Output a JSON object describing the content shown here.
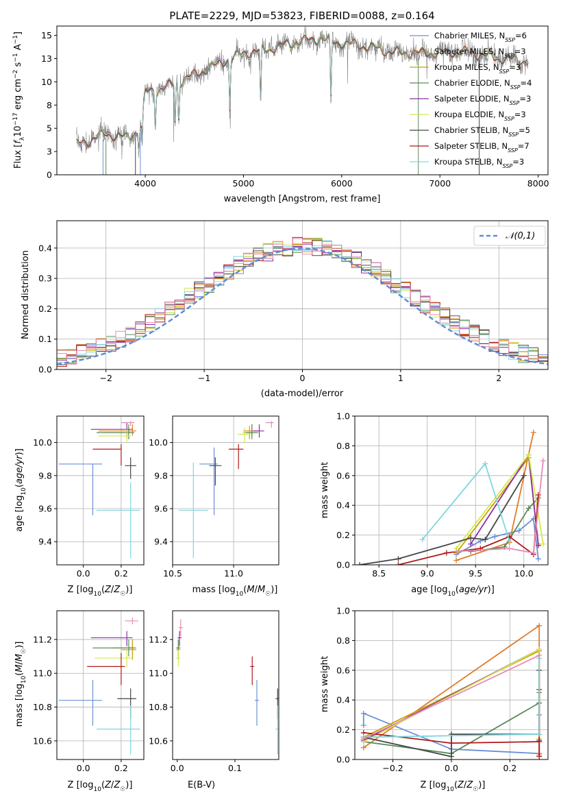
{
  "figure": {
    "background": "#ffffff"
  },
  "chart_data": [
    {
      "id": "spectrum",
      "type": "line",
      "title": "PLATE=2229, MJD=53823, FIBERID=0088, z=0.164",
      "xlabel": "wavelength [Angstrom, rest frame]",
      "ylabel": "Flux [f_λ10^-17 erg cm^-2 s^-1 A^-1]",
      "xlim": [
        3100,
        8100
      ],
      "ylim": [
        0,
        16
      ],
      "xticks": [
        4000,
        5000,
        6000,
        7000,
        8000
      ],
      "yticks": [
        0.0,
        2.5,
        5.0,
        7.5,
        10.0,
        12.5,
        15.0
      ],
      "grid": false,
      "legend_position": "right",
      "data_color": "#808080",
      "continuum": {
        "x": [
          3300,
          3400,
          3600,
          3800,
          3850,
          3950,
          4000,
          4200,
          4400,
          4600,
          4800,
          5000,
          5200,
          5400,
          5600,
          5800,
          6000,
          6200,
          6400,
          6600,
          6800,
          7000,
          7200,
          7400,
          7600,
          7800,
          7900
        ],
        "y": [
          3.2,
          3.5,
          4.5,
          4.0,
          4.0,
          5.0,
          8.8,
          9.5,
          10.2,
          11.2,
          12.3,
          13.0,
          13.4,
          14.0,
          14.3,
          14.7,
          14.2,
          13.8,
          13.5,
          13.1,
          13.0,
          13.2,
          13.2,
          12.9,
          12.6,
          12.3,
          12.1
        ]
      },
      "absorption_lines": [
        3934,
        3969,
        4102,
        4304,
        4341,
        4861,
        5175,
        5890
      ],
      "series": [
        {
          "name": "Chabrier MILES, N_SSP=6",
          "color": "#6a8fd6",
          "xmin": 3300,
          "xmax": 7900
        },
        {
          "name": "Salpeter MILES, N_SSP=3",
          "color": "#e07b2a",
          "xmin": 3300,
          "xmax": 7450
        },
        {
          "name": "Kroupa MILES, N_SSP=3",
          "color": "#c7a400",
          "xmin": 3300,
          "xmax": 7900
        },
        {
          "name": "Chabrier ELODIE, N_SSP=4",
          "color": "#5a8a5a",
          "xmin": 3300,
          "xmax": 7900
        },
        {
          "name": "Salpeter ELODIE, N_SSP=3",
          "color": "#8e2ca8",
          "xmin": 3300,
          "xmax": 7900
        },
        {
          "name": "Kroupa ELODIE, N_SSP=3",
          "color": "#d4e84a",
          "xmin": 3300,
          "xmax": 7900
        },
        {
          "name": "Chabrier STELIB, N_SSP=5",
          "color": "#444444",
          "xmin": 3300,
          "xmax": 7900
        },
        {
          "name": "Salpeter STELIB, N_SSP=7",
          "color": "#b01818",
          "xmin": 3300,
          "xmax": 7900
        },
        {
          "name": "Kroupa STELIB, N_SSP=3",
          "color": "#7fd6df",
          "xmin": 3300,
          "xmax": 7900
        }
      ]
    },
    {
      "id": "residuals",
      "type": "histogram",
      "xlabel": "(data-model)/error",
      "ylabel": "Normed distribution",
      "xlim": [
        -2.5,
        2.5
      ],
      "ylim": [
        0,
        0.49
      ],
      "xticks": [
        -2,
        -1,
        0,
        1,
        2
      ],
      "yticks": [
        0.0,
        0.1,
        0.2,
        0.3,
        0.4
      ],
      "grid": true,
      "bin_width": 0.1,
      "reference": {
        "name": "𝒩(0,1)",
        "color": "#5b8dd6",
        "style": "dashed"
      },
      "hist_colors": [
        "#6a8fd6",
        "#e07b2a",
        "#c7a400",
        "#5a8a5a",
        "#8e2ca8",
        "#d4e84a",
        "#444444",
        "#b01818",
        "#7fd6df",
        "#e88ab4"
      ]
    },
    {
      "id": "age-vs-Z",
      "type": "errorbar",
      "xlabel": "Z [log10(Z/Z☉)]",
      "ylabel": "age  [log10(age/yr)]",
      "xlim": [
        -0.14,
        0.32
      ],
      "ylim": [
        9.26,
        10.16
      ],
      "xticks": [
        0.0,
        0.2
      ],
      "yticks": [
        9.4,
        9.6,
        9.8,
        10.0
      ],
      "grid": true,
      "points": [
        {
          "color": "#6a8fd6",
          "x": 0.05,
          "xerr": [
            0.18,
            0.05
          ],
          "y": 9.87,
          "yerr": [
            0.31,
            0.0
          ]
        },
        {
          "color": "#e07b2a",
          "x": 0.26,
          "xerr": [
            0.18,
            0.02
          ],
          "y": 10.07,
          "yerr": [
            0.03,
            0.04
          ]
        },
        {
          "color": "#c7a400",
          "x": 0.24,
          "xerr": [
            0.14,
            0.02
          ],
          "y": 10.06,
          "yerr": [
            0.04,
            0.04
          ]
        },
        {
          "color": "#5a8a5a",
          "x": 0.24,
          "xerr": [
            0.17,
            0.03
          ],
          "y": 10.06,
          "yerr": [
            0.04,
            0.05
          ]
        },
        {
          "color": "#8e2ca8",
          "x": 0.23,
          "xerr": [
            0.19,
            0.03
          ],
          "y": 10.08,
          "yerr": [
            0.05,
            0.04
          ]
        },
        {
          "color": "#d4e84a",
          "x": 0.23,
          "xerr": [
            0.15,
            0.02
          ],
          "y": 10.04,
          "yerr": [
            0.04,
            0.04
          ]
        },
        {
          "color": "#444444",
          "x": 0.25,
          "xerr": [
            0.03,
            0.03
          ],
          "y": 9.86,
          "yerr": [
            0.08,
            0.05
          ]
        },
        {
          "color": "#b01818",
          "x": 0.2,
          "xerr": [
            0.15,
            0.0
          ],
          "y": 9.96,
          "yerr": [
            0.1,
            0.03
          ]
        },
        {
          "color": "#7fd6df",
          "x": 0.25,
          "xerr": [
            0.18,
            0.05
          ],
          "y": 9.59,
          "yerr": [
            0.29,
            0.17
          ]
        },
        {
          "color": "#e88ab4",
          "x": 0.25,
          "xerr": [
            0.05,
            0.02
          ],
          "y": 10.12,
          "yerr": [
            0.02,
            0.01
          ]
        }
      ]
    },
    {
      "id": "age-vs-mass",
      "type": "errorbar",
      "xlabel": "mass [log10(M/M☉)]",
      "ylabel": "",
      "xlim": [
        10.5,
        11.37
      ],
      "ylim": [
        9.26,
        10.16
      ],
      "xticks": [
        10.5,
        11.0
      ],
      "yticks": [
        9.4,
        9.6,
        9.8,
        10.0
      ],
      "grid": true,
      "points": [
        {
          "color": "#6a8fd6",
          "x": 10.84,
          "xerr": [
            0.12,
            0.03
          ],
          "y": 9.87,
          "yerr": [
            0.31,
            0.1
          ]
        },
        {
          "color": "#e07b2a",
          "x": 11.15,
          "xerr": [
            0.07,
            0.05
          ],
          "y": 10.07,
          "yerr": [
            0.03,
            0.04
          ]
        },
        {
          "color": "#c7a400",
          "x": 11.13,
          "xerr": [
            0.05,
            0.05
          ],
          "y": 10.06,
          "yerr": [
            0.04,
            0.04
          ]
        },
        {
          "color": "#5a8a5a",
          "x": 11.15,
          "xerr": [
            0.05,
            0.05
          ],
          "y": 10.06,
          "yerr": [
            0.04,
            0.05
          ]
        },
        {
          "color": "#8e2ca8",
          "x": 11.21,
          "xerr": [
            0.05,
            0.04
          ],
          "y": 10.07,
          "yerr": [
            0.04,
            0.04
          ]
        },
        {
          "color": "#d4e84a",
          "x": 11.09,
          "xerr": [
            0.06,
            0.05
          ],
          "y": 10.05,
          "yerr": [
            0.05,
            0.04
          ]
        },
        {
          "color": "#444444",
          "x": 10.85,
          "xerr": [
            0.05,
            0.05
          ],
          "y": 9.86,
          "yerr": [
            0.12,
            0.05
          ]
        },
        {
          "color": "#b01818",
          "x": 11.04,
          "xerr": [
            0.08,
            0.04
          ],
          "y": 9.96,
          "yerr": [
            0.12,
            0.03
          ]
        },
        {
          "color": "#7fd6df",
          "x": 10.67,
          "xerr": [
            0.12,
            0.12
          ],
          "y": 9.59,
          "yerr": [
            0.29,
            0.29
          ]
        },
        {
          "color": "#e88ab4",
          "x": 11.31,
          "xerr": [
            0.05,
            0.02
          ],
          "y": 10.12,
          "yerr": [
            0.03,
            0.01
          ]
        }
      ]
    },
    {
      "id": "massweight-vs-age",
      "type": "line",
      "xlabel": "age  [log10(age/yr)]",
      "ylabel": "mass weight",
      "xlim": [
        8.25,
        10.25
      ],
      "ylim": [
        0,
        1
      ],
      "xticks": [
        8.5,
        9.0,
        9.5,
        10.0
      ],
      "yticks": [
        0.0,
        0.2,
        0.4,
        0.6,
        0.8,
        1.0
      ],
      "grid": true,
      "series": [
        {
          "color": "#6a8fd6",
          "x": [
            9.3,
            9.55,
            9.7,
            9.95,
            10.1,
            10.15
          ],
          "y": [
            0.07,
            0.16,
            0.19,
            0.23,
            0.31,
            0.04
          ]
        },
        {
          "color": "#e07b2a",
          "x": [
            9.3,
            9.85,
            10.1
          ],
          "y": [
            0.03,
            0.15,
            0.89
          ]
        },
        {
          "color": "#c7a400",
          "x": [
            9.3,
            10.05,
            10.15
          ],
          "y": [
            0.08,
            0.72,
            0.14
          ]
        },
        {
          "color": "#5a8a5a",
          "x": [
            9.45,
            9.8,
            10.05,
            10.15
          ],
          "y": [
            0.09,
            0.12,
            0.38,
            0.45
          ]
        },
        {
          "color": "#8e2ca8",
          "x": [
            9.45,
            10.05,
            10.15
          ],
          "y": [
            0.14,
            0.74,
            0.13
          ]
        },
        {
          "color": "#d4e84a",
          "x": [
            9.3,
            10.05,
            10.2
          ],
          "y": [
            0.11,
            0.74,
            0.14
          ]
        },
        {
          "color": "#444444",
          "x": [
            8.3,
            8.7,
            9.45,
            9.6,
            10.0
          ],
          "y": [
            0.0,
            0.04,
            0.18,
            0.17,
            0.6
          ]
        },
        {
          "color": "#b01818",
          "x": [
            8.7,
            9.2,
            9.55,
            9.85,
            10.1,
            10.15
          ],
          "y": [
            0.0,
            0.08,
            0.11,
            0.19,
            0.07,
            0.47
          ]
        },
        {
          "color": "#7fd6df",
          "x": [
            8.95,
            9.6,
            9.85
          ],
          "y": [
            0.17,
            0.68,
            0.16
          ]
        },
        {
          "color": "#e88ab4",
          "x": [
            9.3,
            9.85,
            10.1,
            10.2
          ],
          "y": [
            0.09,
            0.11,
            0.08,
            0.7
          ]
        }
      ]
    },
    {
      "id": "mass-vs-Z",
      "type": "errorbar",
      "xlabel": "Z [log10(Z/Z☉)]",
      "ylabel": "mass [log10(M/M☉)]",
      "xlim": [
        -0.14,
        0.32
      ],
      "ylim": [
        10.49,
        11.37
      ],
      "xticks": [
        0.0,
        0.2
      ],
      "yticks": [
        10.6,
        10.8,
        11.0,
        11.2
      ],
      "grid": true,
      "points": [
        {
          "color": "#6a8fd6",
          "x": 0.05,
          "xerr": [
            0.18,
            0.05
          ],
          "y": 10.84,
          "yerr": [
            0.15,
            0.12
          ]
        },
        {
          "color": "#e07b2a",
          "x": 0.26,
          "xerr": [
            0.1,
            0.02
          ],
          "y": 11.15,
          "yerr": [
            0.07,
            0.05
          ]
        },
        {
          "color": "#c7a400",
          "x": 0.26,
          "xerr": [
            0.06,
            0.02
          ],
          "y": 11.14,
          "yerr": [
            0.06,
            0.05
          ]
        },
        {
          "color": "#5a8a5a",
          "x": 0.24,
          "xerr": [
            0.19,
            0.03
          ],
          "y": 11.15,
          "yerr": [
            0.05,
            0.05
          ]
        },
        {
          "color": "#8e2ca8",
          "x": 0.23,
          "xerr": [
            0.19,
            0.03
          ],
          "y": 11.21,
          "yerr": [
            0.05,
            0.04
          ]
        },
        {
          "color": "#d4e84a",
          "x": 0.23,
          "xerr": [
            0.17,
            0.03
          ],
          "y": 11.09,
          "yerr": [
            0.05,
            0.05
          ]
        },
        {
          "color": "#444444",
          "x": 0.25,
          "xerr": [
            0.07,
            0.03
          ],
          "y": 10.85,
          "yerr": [
            0.12,
            0.06
          ]
        },
        {
          "color": "#b01818",
          "x": 0.2,
          "xerr": [
            0.18,
            0.02
          ],
          "y": 11.04,
          "yerr": [
            0.11,
            0.08
          ]
        },
        {
          "color": "#7fd6df",
          "x": 0.25,
          "xerr": [
            0.18,
            0.05
          ],
          "y": 10.67,
          "yerr": [
            0.15,
            0.14
          ]
        },
        {
          "color": "#e88ab4",
          "x": 0.26,
          "xerr": [
            0.04,
            0.03
          ],
          "y": 11.31,
          "yerr": [
            0.02,
            0.02
          ]
        }
      ]
    },
    {
      "id": "mass-vs-ebv",
      "type": "errorbar",
      "xlabel": "E(B-V)",
      "ylabel": "",
      "xlim": [
        -0.004,
        0.088
      ],
      "ylim": [
        10.49,
        11.37
      ],
      "xticks": [
        0.0,
        0.05
      ],
      "yticks": [
        10.6,
        10.8,
        11.0,
        11.2
      ],
      "grid": false,
      "points": [
        {
          "color": "#6a8fd6",
          "x": 0.069,
          "y": 10.84,
          "yerr": [
            0.15,
            0.12
          ]
        },
        {
          "color": "#e07b2a",
          "x": 0.001,
          "y": 11.15,
          "yerr": [
            0.07,
            0.05
          ]
        },
        {
          "color": "#c7a400",
          "x": 0.001,
          "y": 11.14,
          "yerr": [
            0.06,
            0.05
          ]
        },
        {
          "color": "#5a8a5a",
          "x": 0.001,
          "y": 11.15,
          "yerr": [
            0.05,
            0.05
          ]
        },
        {
          "color": "#8e2ca8",
          "x": 0.002,
          "y": 11.21,
          "yerr": [
            0.05,
            0.04
          ]
        },
        {
          "color": "#d4e84a",
          "x": 0.001,
          "y": 11.09,
          "yerr": [
            0.05,
            0.05
          ]
        },
        {
          "color": "#444444",
          "x": 0.087,
          "y": 10.85,
          "yerr": [
            0.12,
            0.06
          ]
        },
        {
          "color": "#b01818",
          "x": 0.065,
          "y": 11.04,
          "yerr": [
            0.11,
            0.06
          ]
        },
        {
          "color": "#7fd6df",
          "x": 0.087,
          "y": 10.67,
          "yerr": [
            0.15,
            0.14
          ]
        },
        {
          "color": "#e88ab4",
          "x": 0.003,
          "y": 11.27,
          "yerr": [
            0.05,
            0.05
          ]
        }
      ]
    },
    {
      "id": "massweight-vs-Z",
      "type": "line",
      "xlabel": "Z [log10(Z/Z☉)]",
      "ylabel": "mass weight",
      "xlim": [
        -0.33,
        0.33
      ],
      "ylim": [
        0,
        1
      ],
      "xticks": [
        -0.2,
        0.0,
        0.2
      ],
      "yticks": [
        0.0,
        0.2,
        0.4,
        0.6,
        0.8,
        1.0
      ],
      "grid": true,
      "series": [
        {
          "color": "#6a8fd6",
          "x": [
            -0.3,
            -0.3,
            0.0,
            0.3,
            0.3
          ],
          "y": [
            0.23,
            0.31,
            0.07,
            0.04,
            0.3
          ]
        },
        {
          "color": "#e07b2a",
          "x": [
            -0.3,
            0.3,
            0.3
          ],
          "y": [
            0.08,
            0.9,
            0.03
          ]
        },
        {
          "color": "#c7a400",
          "x": [
            -0.3,
            0.3,
            0.3
          ],
          "y": [
            0.15,
            0.73,
            0.12
          ]
        },
        {
          "color": "#5a8a5a",
          "x": [
            -0.3,
            0.0,
            0.3,
            0.3
          ],
          "y": [
            0.12,
            0.04,
            0.38,
            0.45
          ]
        },
        {
          "color": "#8e2ca8",
          "x": [
            -0.3,
            0.3,
            0.3
          ],
          "y": [
            0.13,
            0.74,
            0.13
          ]
        },
        {
          "color": "#d4e84a",
          "x": [
            -0.3,
            0.3,
            0.3
          ],
          "y": [
            0.12,
            0.74,
            0.14
          ]
        },
        {
          "color": "#444444",
          "x": [
            -0.3,
            0.0,
            0.0,
            0.3,
            0.3
          ],
          "y": [
            0.15,
            0.02,
            0.17,
            0.17,
            0.6
          ]
        },
        {
          "color": "#b01818",
          "x": [
            -0.3,
            0.0,
            0.3,
            0.3,
            0.3
          ],
          "y": [
            0.18,
            0.11,
            0.12,
            0.02,
            0.47
          ]
        },
        {
          "color": "#7fd6df",
          "x": [
            -0.3,
            0.3,
            0.3
          ],
          "y": [
            0.15,
            0.17,
            0.68
          ]
        },
        {
          "color": "#e88ab4",
          "x": [
            -0.3,
            0.3
          ],
          "y": [
            0.14,
            0.7
          ]
        }
      ]
    }
  ]
}
